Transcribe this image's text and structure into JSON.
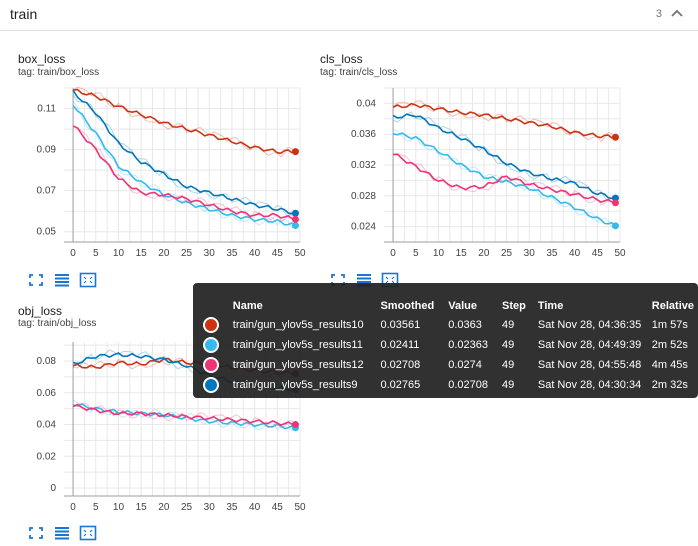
{
  "header": {
    "title": "train",
    "count": "3"
  },
  "cards": [
    {
      "id": "box",
      "title": "box_loss",
      "tag": "tag: train/box_loss"
    },
    {
      "id": "cls",
      "title": "cls_loss",
      "tag": "tag: train/cls_loss"
    },
    {
      "id": "obj",
      "title": "obj_loss",
      "tag": "tag: train/obj_loss"
    }
  ],
  "tooltip": {
    "headers": [
      "",
      "Name",
      "Smoothed",
      "Value",
      "Step",
      "Time",
      "Relative"
    ],
    "rows": [
      {
        "color": "#cc3311",
        "name": "train/gun_ylov5s_results10",
        "smoothed": "0.03561",
        "value": "0.0363",
        "step": "49",
        "time": "Sat Nov 28, 04:36:35",
        "relative": "1m 57s"
      },
      {
        "color": "#33bbee",
        "name": "train/gun_ylov5s_results11",
        "smoothed": "0.02411",
        "value": "0.02363",
        "step": "49",
        "time": "Sat Nov 28, 04:49:39",
        "relative": "2m 52s"
      },
      {
        "color": "#ee3377",
        "name": "train/gun_ylov5s_results12",
        "smoothed": "0.02708",
        "value": "0.0274",
        "step": "49",
        "time": "Sat Nov 28, 04:55:48",
        "relative": "4m 45s"
      },
      {
        "color": "#0077bb",
        "name": "train/gun_ylov5s_results9",
        "smoothed": "0.02765",
        "value": "0.02708",
        "step": "49",
        "time": "Sat Nov 28, 04:30:34",
        "relative": "2m 32s"
      }
    ]
  },
  "chart_data": [
    {
      "type": "line",
      "title": "box_loss",
      "xlim": [
        -2,
        50
      ],
      "ylim": [
        0.045,
        0.12
      ],
      "xticks": [
        0,
        5,
        10,
        15,
        20,
        25,
        30,
        35,
        40,
        45,
        50
      ],
      "yticks": [
        0.05,
        0.07,
        0.09,
        0.11
      ],
      "ytick_labels": [
        "0.05",
        "0.07",
        "0.09",
        "0.11"
      ],
      "series": [
        {
          "color": "#cc3311",
          "points": [
            [
              0,
              0.119
            ],
            [
              5,
              0.116
            ],
            [
              10,
              0.111
            ],
            [
              15,
              0.107
            ],
            [
              20,
              0.103
            ],
            [
              25,
              0.1
            ],
            [
              30,
              0.097
            ],
            [
              35,
              0.094
            ],
            [
              40,
              0.091
            ],
            [
              45,
              0.089
            ],
            [
              49,
              0.089
            ]
          ]
        },
        {
          "color": "#0077bb",
          "points": [
            [
              0,
              0.118
            ],
            [
              5,
              0.108
            ],
            [
              10,
              0.093
            ],
            [
              15,
              0.084
            ],
            [
              20,
              0.078
            ],
            [
              25,
              0.072
            ],
            [
              30,
              0.069
            ],
            [
              35,
              0.066
            ],
            [
              40,
              0.063
            ],
            [
              45,
              0.061
            ],
            [
              49,
              0.059
            ]
          ]
        },
        {
          "color": "#33bbee",
          "points": [
            [
              0,
              0.112
            ],
            [
              5,
              0.098
            ],
            [
              10,
              0.082
            ],
            [
              15,
              0.074
            ],
            [
              20,
              0.068
            ],
            [
              25,
              0.064
            ],
            [
              30,
              0.061
            ],
            [
              35,
              0.058
            ],
            [
              40,
              0.056
            ],
            [
              45,
              0.055
            ],
            [
              49,
              0.053
            ]
          ]
        },
        {
          "color": "#ee3377",
          "points": [
            [
              0,
              0.102
            ],
            [
              5,
              0.09
            ],
            [
              10,
              0.076
            ],
            [
              15,
              0.069
            ],
            [
              20,
              0.068
            ],
            [
              25,
              0.066
            ],
            [
              30,
              0.063
            ],
            [
              35,
              0.06
            ],
            [
              40,
              0.058
            ],
            [
              45,
              0.058
            ],
            [
              49,
              0.056
            ]
          ]
        }
      ]
    },
    {
      "type": "line",
      "title": "cls_loss",
      "xlim": [
        -2,
        50
      ],
      "ylim": [
        0.022,
        0.042
      ],
      "xticks": [
        0,
        5,
        10,
        15,
        20,
        25,
        30,
        35,
        40,
        45,
        50
      ],
      "yticks": [
        0.024,
        0.028,
        0.032,
        0.036,
        0.04
      ],
      "ytick_labels": [
        "0.024",
        "0.028",
        "0.032",
        "0.036",
        "0.04"
      ],
      "series": [
        {
          "color": "#cc3311",
          "points": [
            [
              0,
              0.0395
            ],
            [
              5,
              0.0398
            ],
            [
              10,
              0.0393
            ],
            [
              15,
              0.0388
            ],
            [
              20,
              0.0385
            ],
            [
              25,
              0.038
            ],
            [
              30,
              0.0375
            ],
            [
              35,
              0.037
            ],
            [
              40,
              0.0362
            ],
            [
              45,
              0.0358
            ],
            [
              49,
              0.0356
            ]
          ]
        },
        {
          "color": "#0077bb",
          "points": [
            [
              0,
              0.0382
            ],
            [
              5,
              0.0385
            ],
            [
              10,
              0.0368
            ],
            [
              15,
              0.0355
            ],
            [
              20,
              0.034
            ],
            [
              25,
              0.0322
            ],
            [
              30,
              0.031
            ],
            [
              35,
              0.0302
            ],
            [
              40,
              0.0296
            ],
            [
              45,
              0.0283
            ],
            [
              49,
              0.0277
            ]
          ]
        },
        {
          "color": "#33bbee",
          "points": [
            [
              0,
              0.0362
            ],
            [
              5,
              0.0355
            ],
            [
              10,
              0.0338
            ],
            [
              15,
              0.032
            ],
            [
              20,
              0.0305
            ],
            [
              25,
              0.0298
            ],
            [
              30,
              0.029
            ],
            [
              35,
              0.0278
            ],
            [
              40,
              0.0265
            ],
            [
              45,
              0.025
            ],
            [
              49,
              0.0241
            ]
          ]
        },
        {
          "color": "#ee3377",
          "points": [
            [
              0,
              0.0335
            ],
            [
              5,
              0.0318
            ],
            [
              10,
              0.03
            ],
            [
              15,
              0.029
            ],
            [
              20,
              0.0292
            ],
            [
              25,
              0.0305
            ],
            [
              30,
              0.0295
            ],
            [
              35,
              0.0288
            ],
            [
              40,
              0.0282
            ],
            [
              45,
              0.0275
            ],
            [
              49,
              0.0271
            ]
          ]
        }
      ]
    },
    {
      "type": "line",
      "title": "obj_loss",
      "xlim": [
        -2,
        50
      ],
      "ylim": [
        -0.005,
        0.092
      ],
      "xticks": [
        0,
        5,
        10,
        15,
        20,
        25,
        30,
        35,
        40,
        45,
        50
      ],
      "yticks": [
        0,
        0.02,
        0.04,
        0.06,
        0.08
      ],
      "ytick_labels": [
        "0",
        "0.02",
        "0.04",
        "0.06",
        "0.08"
      ],
      "series": [
        {
          "color": "#cc3311",
          "points": [
            [
              0,
              0.077
            ],
            [
              5,
              0.076
            ],
            [
              10,
              0.079
            ],
            [
              15,
              0.078
            ],
            [
              20,
              0.081
            ],
            [
              25,
              0.079
            ],
            [
              30,
              0.078
            ],
            [
              35,
              0.076
            ],
            [
              40,
              0.074
            ],
            [
              45,
              0.073
            ],
            [
              49,
              0.072
            ]
          ]
        },
        {
          "color": "#0077bb",
          "points": [
            [
              0,
              0.078
            ],
            [
              5,
              0.083
            ],
            [
              10,
              0.084
            ],
            [
              15,
              0.083
            ],
            [
              20,
              0.081
            ],
            [
              25,
              0.077
            ],
            [
              30,
              0.071
            ],
            [
              35,
              0.067
            ],
            [
              40,
              0.064
            ],
            [
              45,
              0.063
            ],
            [
              49,
              0.062
            ]
          ]
        },
        {
          "color": "#33bbee",
          "points": [
            [
              0,
              0.053
            ],
            [
              5,
              0.05
            ],
            [
              10,
              0.048
            ],
            [
              15,
              0.047
            ],
            [
              20,
              0.046
            ],
            [
              25,
              0.044
            ],
            [
              30,
              0.042
            ],
            [
              35,
              0.041
            ],
            [
              40,
              0.04
            ],
            [
              45,
              0.039
            ],
            [
              49,
              0.038
            ]
          ]
        },
        {
          "color": "#ee3377",
          "points": [
            [
              0,
              0.052
            ],
            [
              5,
              0.049
            ],
            [
              10,
              0.047
            ],
            [
              15,
              0.047
            ],
            [
              20,
              0.046
            ],
            [
              25,
              0.045
            ],
            [
              30,
              0.044
            ],
            [
              35,
              0.043
            ],
            [
              40,
              0.042
            ],
            [
              45,
              0.041
            ],
            [
              49,
              0.04
            ]
          ]
        }
      ]
    }
  ]
}
